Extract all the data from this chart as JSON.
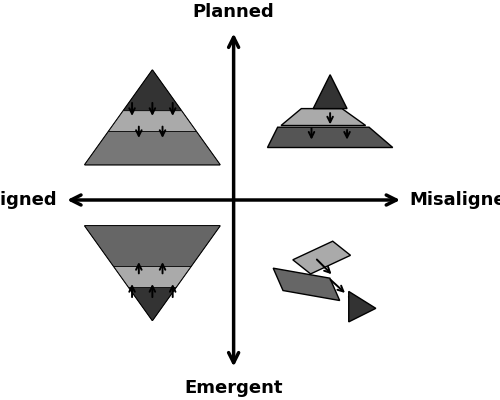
{
  "bg_color": "#ffffff",
  "dark_gray": "#333333",
  "mid_gray": "#777777",
  "light_gray": "#aaaaaa",
  "label_planned": "Planned",
  "label_emergent": "Emergent",
  "label_aligned": "Aligned",
  "label_misaligned": "Misaligned",
  "label_fontsize": 13
}
